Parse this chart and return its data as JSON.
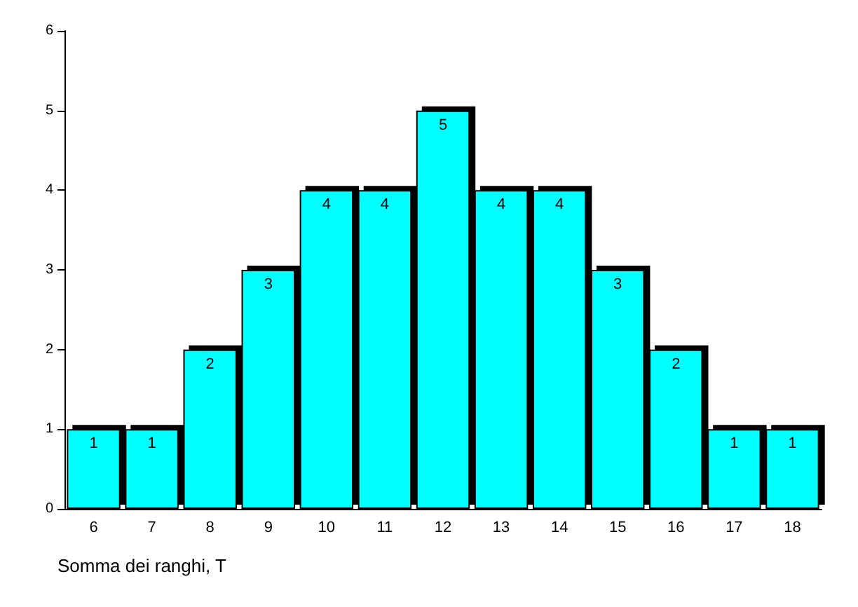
{
  "chart_data": {
    "type": "bar",
    "xlabel": "Somma dei ranghi, T",
    "categories": [
      "6",
      "7",
      "8",
      "9",
      "10",
      "11",
      "12",
      "13",
      "14",
      "15",
      "16",
      "17",
      "18"
    ],
    "values": [
      1,
      1,
      2,
      3,
      4,
      4,
      5,
      4,
      4,
      3,
      2,
      1,
      1
    ],
    "color": "#00ffff",
    "ylim": [
      0,
      6
    ],
    "yticks": [
      0,
      1,
      2,
      3,
      4,
      5,
      6
    ],
    "grid": false,
    "data_labels": true
  }
}
